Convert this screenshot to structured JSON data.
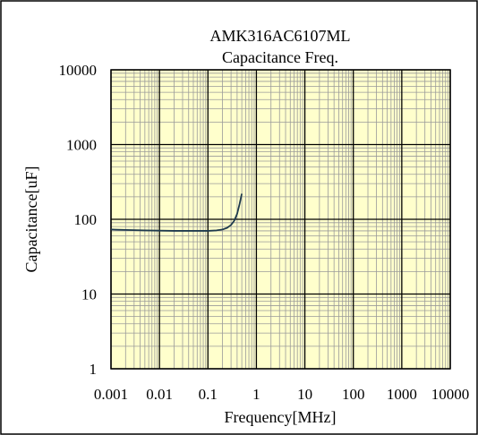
{
  "chart_data": {
    "type": "line",
    "title": "AMK316AC6107ML",
    "subtitle": "Capacitance Freq.",
    "xlabel": "Frequency[MHz]",
    "ylabel": "Capacitance[uF]",
    "x_scale": "log",
    "y_scale": "log",
    "xlim": [
      0.001,
      10000
    ],
    "ylim": [
      1,
      10000
    ],
    "x_ticks": [
      "0.001",
      "0.01",
      "0.1",
      "1",
      "10",
      "100",
      "1000",
      "10000"
    ],
    "y_ticks": [
      "1",
      "10",
      "100",
      "1000",
      "10000"
    ],
    "grid": true,
    "legend": "none",
    "colors": {
      "plot_background": "#ffffcc",
      "grid_major": "#000000",
      "grid_minor": "#9a9a9a",
      "series_line": "#1f3a4d",
      "frame": "#000000"
    },
    "series": [
      {
        "x": [
          0.001,
          0.002,
          0.005,
          0.01,
          0.02,
          0.05,
          0.1,
          0.15,
          0.2,
          0.25,
          0.3,
          0.35,
          0.4,
          0.45,
          0.5
        ],
        "y": [
          73,
          72,
          71,
          70.5,
          70,
          70,
          70,
          71,
          73,
          77,
          84,
          96,
          118,
          160,
          220
        ]
      }
    ]
  }
}
